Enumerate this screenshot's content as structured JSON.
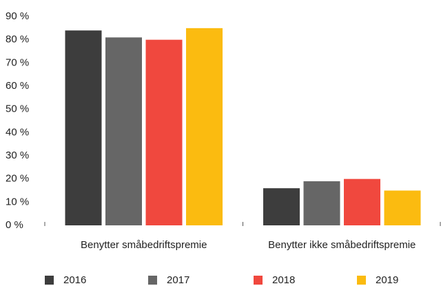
{
  "chart_data": {
    "type": "bar",
    "categories": [
      "Benytter småbedriftspremie",
      "Benytter ikke småbedriftspremie"
    ],
    "series": [
      {
        "name": "2016",
        "color": "#3d3d3d",
        "values": [
          84,
          16
        ]
      },
      {
        "name": "2017",
        "color": "#666666",
        "values": [
          81,
          19
        ]
      },
      {
        "name": "2018",
        "color": "#f0483e",
        "values": [
          80,
          20
        ]
      },
      {
        "name": "2019",
        "color": "#fbbb10",
        "values": [
          85,
          15
        ]
      }
    ],
    "ylim": [
      0,
      90
    ],
    "yticks": [
      {
        "value": 0,
        "label": "0 %"
      },
      {
        "value": 10,
        "label": "10 %"
      },
      {
        "value": 20,
        "label": "20 %"
      },
      {
        "value": 30,
        "label": "30 %"
      },
      {
        "value": 40,
        "label": "40 %"
      },
      {
        "value": 50,
        "label": "50 %"
      },
      {
        "value": 60,
        "label": "60 %"
      },
      {
        "value": 70,
        "label": "70 %"
      },
      {
        "value": 80,
        "label": "80 %"
      },
      {
        "value": 90,
        "label": "90 %"
      }
    ],
    "grid": false,
    "legend": "bottom"
  }
}
